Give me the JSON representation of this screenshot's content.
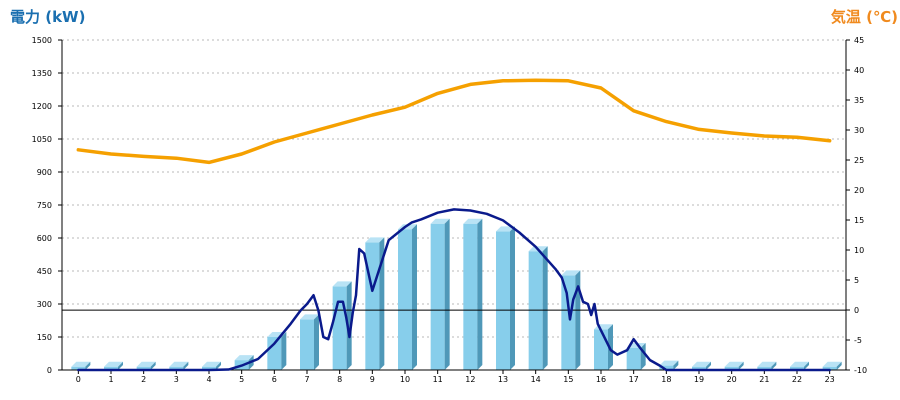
{
  "chart_data": {
    "type": "bar",
    "left_axis_title": "電力 (kW)",
    "right_axis_title": "気温 (℃)",
    "left_title_color": "#1a6fb0",
    "right_title_color": "#f08a1e",
    "x_ticks": [
      "0",
      "1",
      "2",
      "3",
      "4",
      "5",
      "6",
      "7",
      "8",
      "9",
      "10",
      "11",
      "12",
      "13",
      "14",
      "15",
      "16",
      "17",
      "18",
      "19",
      "20",
      "21",
      "22",
      "23"
    ],
    "left_ticks": [
      "0",
      "150",
      "300",
      "450",
      "600",
      "750",
      "900",
      "1050",
      "1200",
      "1350",
      "1500"
    ],
    "right_ticks": [
      "-10",
      "-5",
      "0",
      "5",
      "10",
      "15",
      "20",
      "25",
      "30",
      "35",
      "40",
      "45"
    ],
    "ylim_left": [
      0,
      1500
    ],
    "ylim_right": [
      -10,
      45
    ],
    "grid": true,
    "bars": {
      "color": "#87ceeb",
      "x": [
        0,
        1,
        2,
        3,
        4,
        5,
        6,
        7,
        8,
        9,
        10,
        11,
        12,
        13,
        14,
        15,
        16,
        17,
        18,
        19,
        20,
        21,
        22,
        23
      ],
      "values": [
        15,
        15,
        15,
        15,
        15,
        45,
        150,
        230,
        380,
        580,
        640,
        665,
        665,
        630,
        540,
        430,
        185,
        100,
        20,
        15,
        15,
        15,
        15,
        15
      ]
    },
    "power_line": {
      "color": "#0a1a8c",
      "x": [
        0,
        1,
        2,
        3,
        4,
        4.6,
        5,
        5.5,
        6,
        6.5,
        6.8,
        7,
        7.2,
        7.35,
        7.5,
        7.65,
        7.8,
        7.95,
        8.1,
        8.2,
        8.3,
        8.4,
        8.5,
        8.6,
        8.75,
        9,
        9.5,
        10,
        10.2,
        10.5,
        11,
        11.5,
        12,
        12.5,
        13,
        13.5,
        14,
        14.3,
        14.6,
        14.8,
        14.95,
        15.05,
        15.15,
        15.3,
        15.45,
        15.6,
        15.7,
        15.8,
        15.9,
        16,
        16.3,
        16.5,
        16.8,
        17,
        17.2,
        17.5,
        17.8,
        18,
        18.5,
        19,
        20,
        21,
        22,
        23
      ],
      "values": [
        0,
        0,
        0,
        0,
        0,
        2,
        20,
        50,
        120,
        210,
        270,
        300,
        340,
        270,
        150,
        140,
        220,
        310,
        310,
        240,
        150,
        260,
        340,
        550,
        530,
        360,
        590,
        650,
        670,
        685,
        715,
        730,
        725,
        710,
        680,
        625,
        560,
        510,
        460,
        420,
        350,
        230,
        320,
        380,
        310,
        300,
        250,
        300,
        210,
        180,
        90,
        70,
        90,
        140,
        100,
        45,
        20,
        0,
        0,
        0,
        0,
        0,
        0,
        0
      ]
    },
    "temp_line": {
      "color": "#f5a000",
      "x": [
        0,
        1,
        2,
        3,
        4,
        5,
        6,
        7,
        8,
        9,
        10,
        11,
        12,
        13,
        14,
        15,
        16,
        17,
        18,
        19,
        20,
        21,
        22,
        23
      ],
      "values": [
        26.7,
        26.0,
        25.6,
        25.3,
        24.6,
        26.0,
        28.0,
        29.5,
        31.0,
        32.5,
        33.8,
        36.1,
        37.6,
        38.2,
        38.3,
        38.2,
        37.0,
        33.2,
        31.4,
        30.1,
        29.5,
        29.0,
        28.8,
        28.2
      ]
    },
    "reference_line": {
      "left_value": 272,
      "color": "#000000"
    }
  }
}
